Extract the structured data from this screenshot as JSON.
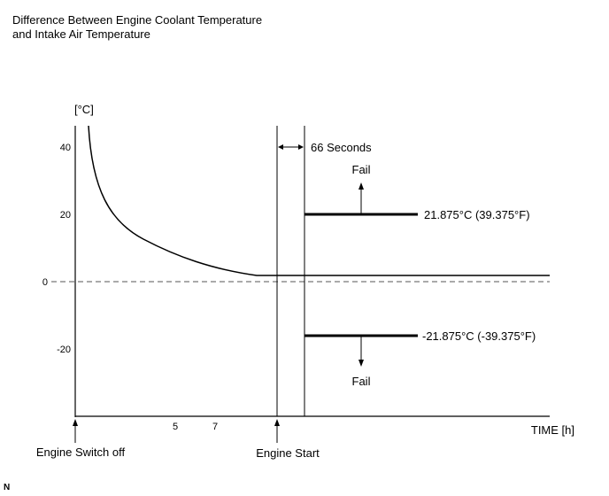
{
  "title_lines": [
    "Difference Between Engine Coolant Temperature",
    "and Intake Air Temperature"
  ],
  "y_axis": {
    "unit_label": "[°C]",
    "ticks": [
      "40",
      "20",
      "0",
      "-20"
    ]
  },
  "x_axis": {
    "label": "TIME [h]",
    "ticks": [
      "5",
      "7"
    ]
  },
  "interval_label": "66 Seconds",
  "upper_threshold": {
    "label": "21.875°C (39.375°F)",
    "fail_label": "Fail"
  },
  "lower_threshold": {
    "label": "-21.875°C (-39.375°F)",
    "fail_label": "Fail"
  },
  "event_labels": {
    "switch_off": "Engine Switch off",
    "start": "Engine Start"
  },
  "corner_mark": "N"
}
